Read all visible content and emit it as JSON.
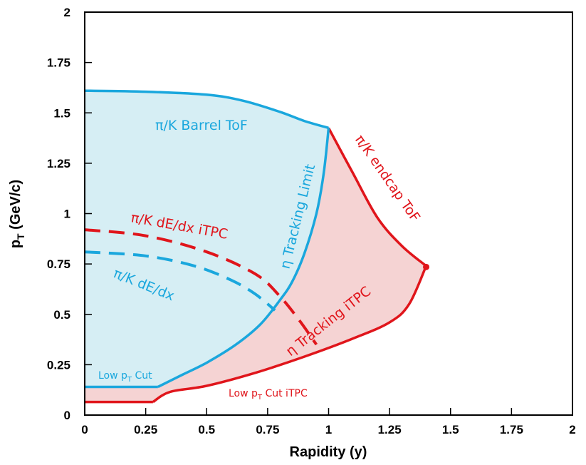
{
  "chart_data": {
    "type": "line",
    "xlabel": "Rapidity (y)",
    "ylabel": "p_T (GeV/c)",
    "xlim": [
      0,
      2
    ],
    "ylim": [
      0,
      2
    ],
    "x_ticks": [
      "0",
      "0.25",
      "0.5",
      "0.75",
      "1",
      "1.25",
      "1.5",
      "1.75",
      "2"
    ],
    "y_ticks": [
      "0",
      "0.25",
      "0.5",
      "0.75",
      "1",
      "1.25",
      "1.5",
      "1.75",
      "2"
    ],
    "grid": false,
    "colors": {
      "barrel": "#1aa7dd",
      "barrel_fill": "#d6eef4",
      "itpc": "#e0151b",
      "itpc_fill": "#f5d3d3"
    },
    "regions": [
      {
        "id": "barrel",
        "color": "barrel",
        "fill": "barrel_fill",
        "upper": [
          [
            0,
            1.61
          ],
          [
            0.25,
            1.605
          ],
          [
            0.5,
            1.59
          ],
          [
            0.65,
            1.56
          ],
          [
            0.8,
            1.505
          ],
          [
            0.9,
            1.46
          ],
          [
            1.0,
            1.425
          ]
        ],
        "limit": [
          [
            1.0,
            1.425
          ],
          [
            0.98,
            1.2
          ],
          [
            0.95,
            1.0
          ],
          [
            0.9,
            0.8
          ],
          [
            0.85,
            0.66
          ],
          [
            0.8,
            0.57
          ],
          [
            0.72,
            0.45
          ],
          [
            0.62,
            0.35
          ],
          [
            0.5,
            0.26
          ],
          [
            0.4,
            0.2
          ],
          [
            0.3,
            0.14
          ]
        ],
        "low_cut": [
          [
            0.3,
            0.14
          ],
          [
            0,
            0.14
          ]
        ]
      },
      {
        "id": "itpc",
        "color": "itpc",
        "fill": "itpc_fill",
        "endcap": [
          [
            1.0,
            1.425
          ],
          [
            1.1,
            1.2
          ],
          [
            1.2,
            0.98
          ],
          [
            1.3,
            0.84
          ],
          [
            1.4,
            0.74
          ]
        ],
        "tracking": [
          [
            1.4,
            0.74
          ],
          [
            1.33,
            0.55
          ],
          [
            1.25,
            0.46
          ],
          [
            1.1,
            0.38
          ],
          [
            0.9,
            0.29
          ],
          [
            0.7,
            0.21
          ],
          [
            0.5,
            0.145
          ],
          [
            0.35,
            0.115
          ],
          [
            0.28,
            0.065
          ]
        ],
        "low_cut": [
          [
            0.28,
            0.065
          ],
          [
            0,
            0.065
          ]
        ],
        "endpoint": [
          1.4,
          0.735
        ]
      }
    ],
    "series": [
      {
        "name": "π/K dE/dx",
        "color": "barrel",
        "dashed": true,
        "points": [
          [
            0,
            0.81
          ],
          [
            0.25,
            0.79
          ],
          [
            0.45,
            0.74
          ],
          [
            0.6,
            0.67
          ],
          [
            0.7,
            0.6
          ],
          [
            0.78,
            0.52
          ]
        ]
      },
      {
        "name": "π/K dE/dx iTPC",
        "color": "itpc",
        "dashed": true,
        "points": [
          [
            0,
            0.92
          ],
          [
            0.25,
            0.89
          ],
          [
            0.5,
            0.81
          ],
          [
            0.7,
            0.7
          ],
          [
            0.8,
            0.59
          ],
          [
            0.88,
            0.47
          ],
          [
            0.95,
            0.35
          ]
        ]
      }
    ],
    "annotations": [
      {
        "text": "π/K Barrel ToF",
        "color": "barrel"
      },
      {
        "text": "η Tracking Limit",
        "color": "barrel"
      },
      {
        "text": "π/K dE/dx",
        "color": "barrel"
      },
      {
        "text": "π/K dE/dx iTPC",
        "color": "itpc"
      },
      {
        "text": "π/K endcap ToF",
        "color": "itpc"
      },
      {
        "text": "η Tracking iTPC",
        "color": "itpc"
      },
      {
        "text": "Low pT Cut",
        "color": "barrel"
      },
      {
        "text": "Low pT Cut iTPC",
        "color": "itpc"
      }
    ]
  }
}
